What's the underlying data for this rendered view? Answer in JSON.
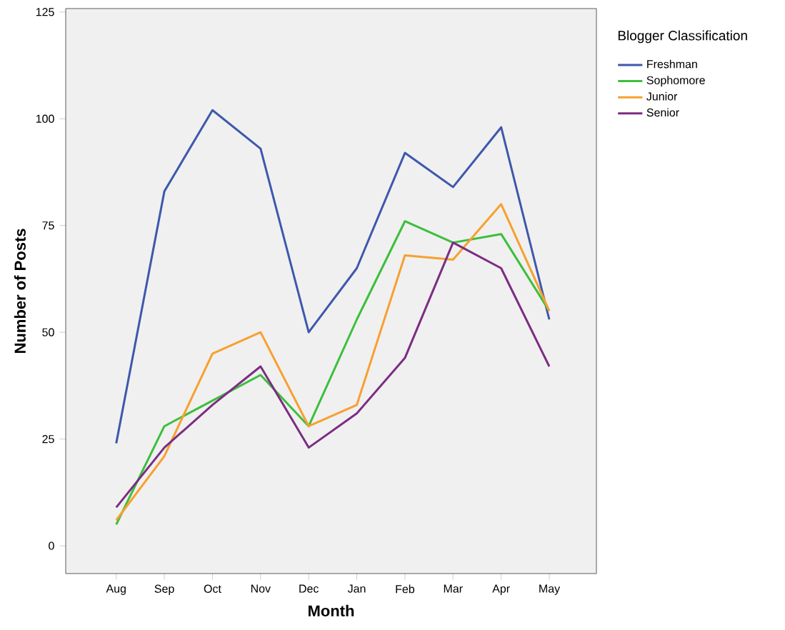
{
  "chart_data": {
    "type": "line",
    "xlabel": "Month",
    "ylabel": "Number of Posts",
    "legend_title": "Blogger Classification",
    "legend": "right",
    "grid": false,
    "marker": "none",
    "line_style": "solid",
    "categories": [
      "Aug",
      "Sep",
      "Oct",
      "Nov",
      "Dec",
      "Jan",
      "Feb",
      "Mar",
      "Apr",
      "May"
    ],
    "ylim": [
      -6.5,
      125.8
    ],
    "yticks": [
      0,
      25,
      50,
      75,
      100,
      125
    ],
    "series": [
      {
        "name": "Freshman",
        "color": "#3e58ac",
        "values": [
          24,
          83,
          102,
          93,
          50,
          65,
          92,
          84,
          98,
          53
        ]
      },
      {
        "name": "Sophomore",
        "color": "#3cbf3c",
        "values": [
          5,
          28,
          34,
          40,
          28,
          53,
          76,
          71,
          73,
          55
        ]
      },
      {
        "name": "Junior",
        "color": "#f7a030",
        "values": [
          6,
          21,
          45,
          50,
          28,
          33,
          68,
          67,
          80,
          55
        ]
      },
      {
        "name": "Senior",
        "color": "#7b2d82",
        "values": [
          9,
          23,
          33,
          42,
          23,
          31,
          44,
          71,
          65,
          42
        ]
      }
    ]
  }
}
